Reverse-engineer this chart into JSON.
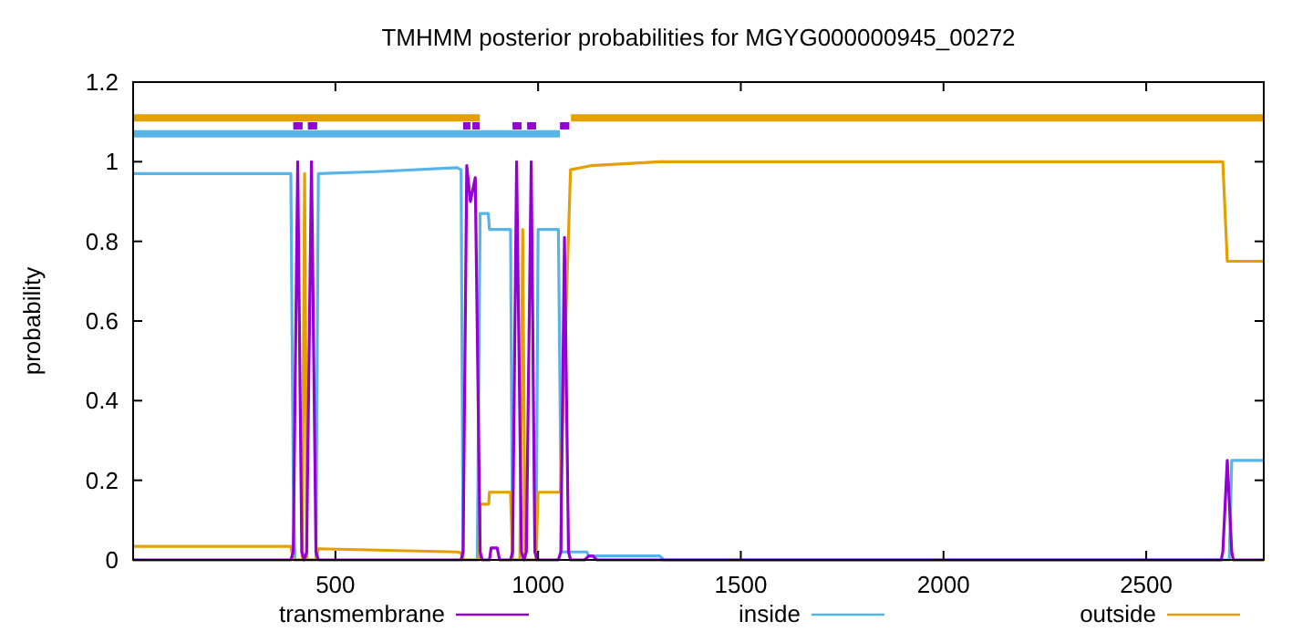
{
  "chart_data": {
    "type": "line",
    "title": "TMHMM posterior probabilities for MGYG000000945_00272",
    "ylabel": "probability",
    "xlim": [
      1,
      2790
    ],
    "ylim": [
      0,
      1.2
    ],
    "xticks": [
      500,
      1000,
      1500,
      2000,
      2500
    ],
    "yticks": [
      0,
      0.2,
      0.4,
      0.6,
      0.8,
      1,
      1.2
    ],
    "legend": "bottom",
    "series": [
      {
        "color": "#e69f00",
        "x": [
          1,
          856,
          857,
          1081,
          2790
        ],
        "values": [
          1.11,
          1.11,
          null,
          1.11,
          1.11
        ]
      },
      {
        "color": "#56b4e9",
        "x": [
          1,
          1054
        ],
        "values": [
          1.07,
          1.07
        ]
      },
      {
        "color": "#9400d3",
        "x": [
          396,
          419,
          420,
          432,
          455,
          456,
          815,
          833,
          834,
          838,
          856,
          857,
          937,
          959,
          960,
          973,
          995,
          996,
          1054,
          1077
        ],
        "values": [
          1.09,
          1.09,
          null,
          1.09,
          1.09,
          null,
          1.09,
          1.09,
          null,
          1.09,
          1.09,
          null,
          1.09,
          1.09,
          null,
          1.09,
          1.09,
          null,
          1.09,
          1.09
        ]
      },
      {
        "name": "inside",
        "color": "#56b4e9",
        "x": [
          1,
          390,
          396,
          400,
          452,
          458,
          600,
          800,
          810,
          815,
          850,
          857,
          877,
          880,
          932,
          937,
          995,
          1000,
          1050,
          1058,
          1120,
          1125,
          1300,
          1310,
          2705,
          2711,
          2790
        ],
        "values": [
          0.97,
          0.97,
          0.2,
          0,
          0,
          0.97,
          0.975,
          0.985,
          0.98,
          0,
          0,
          0.87,
          0.87,
          0.83,
          0.83,
          0,
          0,
          0.83,
          0.83,
          0.02,
          0.02,
          0.01,
          0.01,
          0,
          0,
          0.25,
          0.25
        ]
      },
      {
        "name": "outside",
        "color": "#e69f00",
        "x": [
          1,
          390,
          396,
          418,
          424,
          430,
          452,
          458,
          800,
          810,
          815,
          855,
          857,
          878,
          880,
          932,
          937,
          955,
          962,
          968,
          995,
          1000,
          1055,
          1080,
          1130,
          1300,
          2689,
          2700,
          2790
        ],
        "values": [
          0.034,
          0.034,
          0,
          0,
          0.97,
          0,
          0,
          0.028,
          0.02,
          0.018,
          0,
          0,
          0.14,
          0.14,
          0.17,
          0.17,
          0,
          0,
          0.83,
          0,
          0,
          0.17,
          0.17,
          0.98,
          0.99,
          1.0,
          1.0,
          0.75,
          0.75
        ]
      },
      {
        "name": "transmembrane",
        "color": "#9400d3",
        "x": [
          1,
          390,
          396,
          407,
          417,
          423,
          429,
          441,
          452,
          458,
          810,
          815,
          824,
          833,
          845,
          857,
          862,
          880,
          884,
          892,
          899,
          905,
          932,
          937,
          947,
          959,
          965,
          971,
          983,
          992,
          998,
          1050,
          1056,
          1065,
          1075,
          1080,
          1115,
          1125,
          1135,
          1145,
          2685,
          2689,
          2700,
          2711,
          2715,
          2790
        ],
        "values": [
          0,
          0,
          0.02,
          1.0,
          0.02,
          0,
          0.02,
          1.0,
          0.02,
          0,
          0,
          0.02,
          0.99,
          0.9,
          0.96,
          0.02,
          0,
          0,
          0.03,
          0.03,
          0.03,
          0,
          0,
          0.02,
          1.0,
          0.02,
          0,
          0.02,
          1.0,
          0.02,
          0,
          0,
          0.02,
          0.81,
          0.02,
          0,
          0,
          0.01,
          0.01,
          0,
          0,
          0.02,
          0.25,
          0.02,
          0,
          0
        ]
      }
    ]
  }
}
